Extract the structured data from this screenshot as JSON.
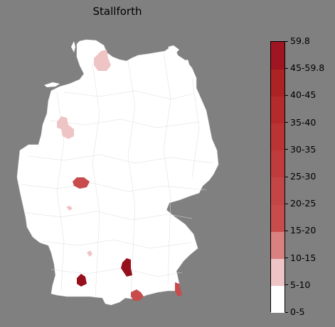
{
  "title": "Stallforth",
  "legend": {
    "ticks": [
      "0-5",
      "5-10",
      "10-15",
      "15-20",
      "20-25",
      "25-30",
      "30-35",
      "35-40",
      "40-45",
      "45-59.8",
      "59.8"
    ],
    "bands": [
      {
        "from": 0,
        "to": 5,
        "color": "#ffffff"
      },
      {
        "from": 5,
        "to": 10,
        "color": "#efc4c4"
      },
      {
        "from": 10,
        "to": 15,
        "color": "#d98080"
      },
      {
        "from": 15,
        "to": 20,
        "color": "#c84c4c"
      },
      {
        "from": 20,
        "to": 25,
        "color": "#c44545"
      },
      {
        "from": 25,
        "to": 30,
        "color": "#c03c3c"
      },
      {
        "from": 30,
        "to": 35,
        "color": "#bb3434"
      },
      {
        "from": 35,
        "to": 40,
        "color": "#b52b2b"
      },
      {
        "from": 40,
        "to": 45,
        "color": "#ad2222"
      },
      {
        "from": 45,
        "to": 59.8,
        "color": "#a01522"
      },
      {
        "from": 59.8,
        "to": 59.8,
        "color": "#960f1c"
      }
    ]
  },
  "map_colors": {
    "background": "#808080",
    "land": "#ffffff",
    "border": "#d8d8d8"
  }
}
